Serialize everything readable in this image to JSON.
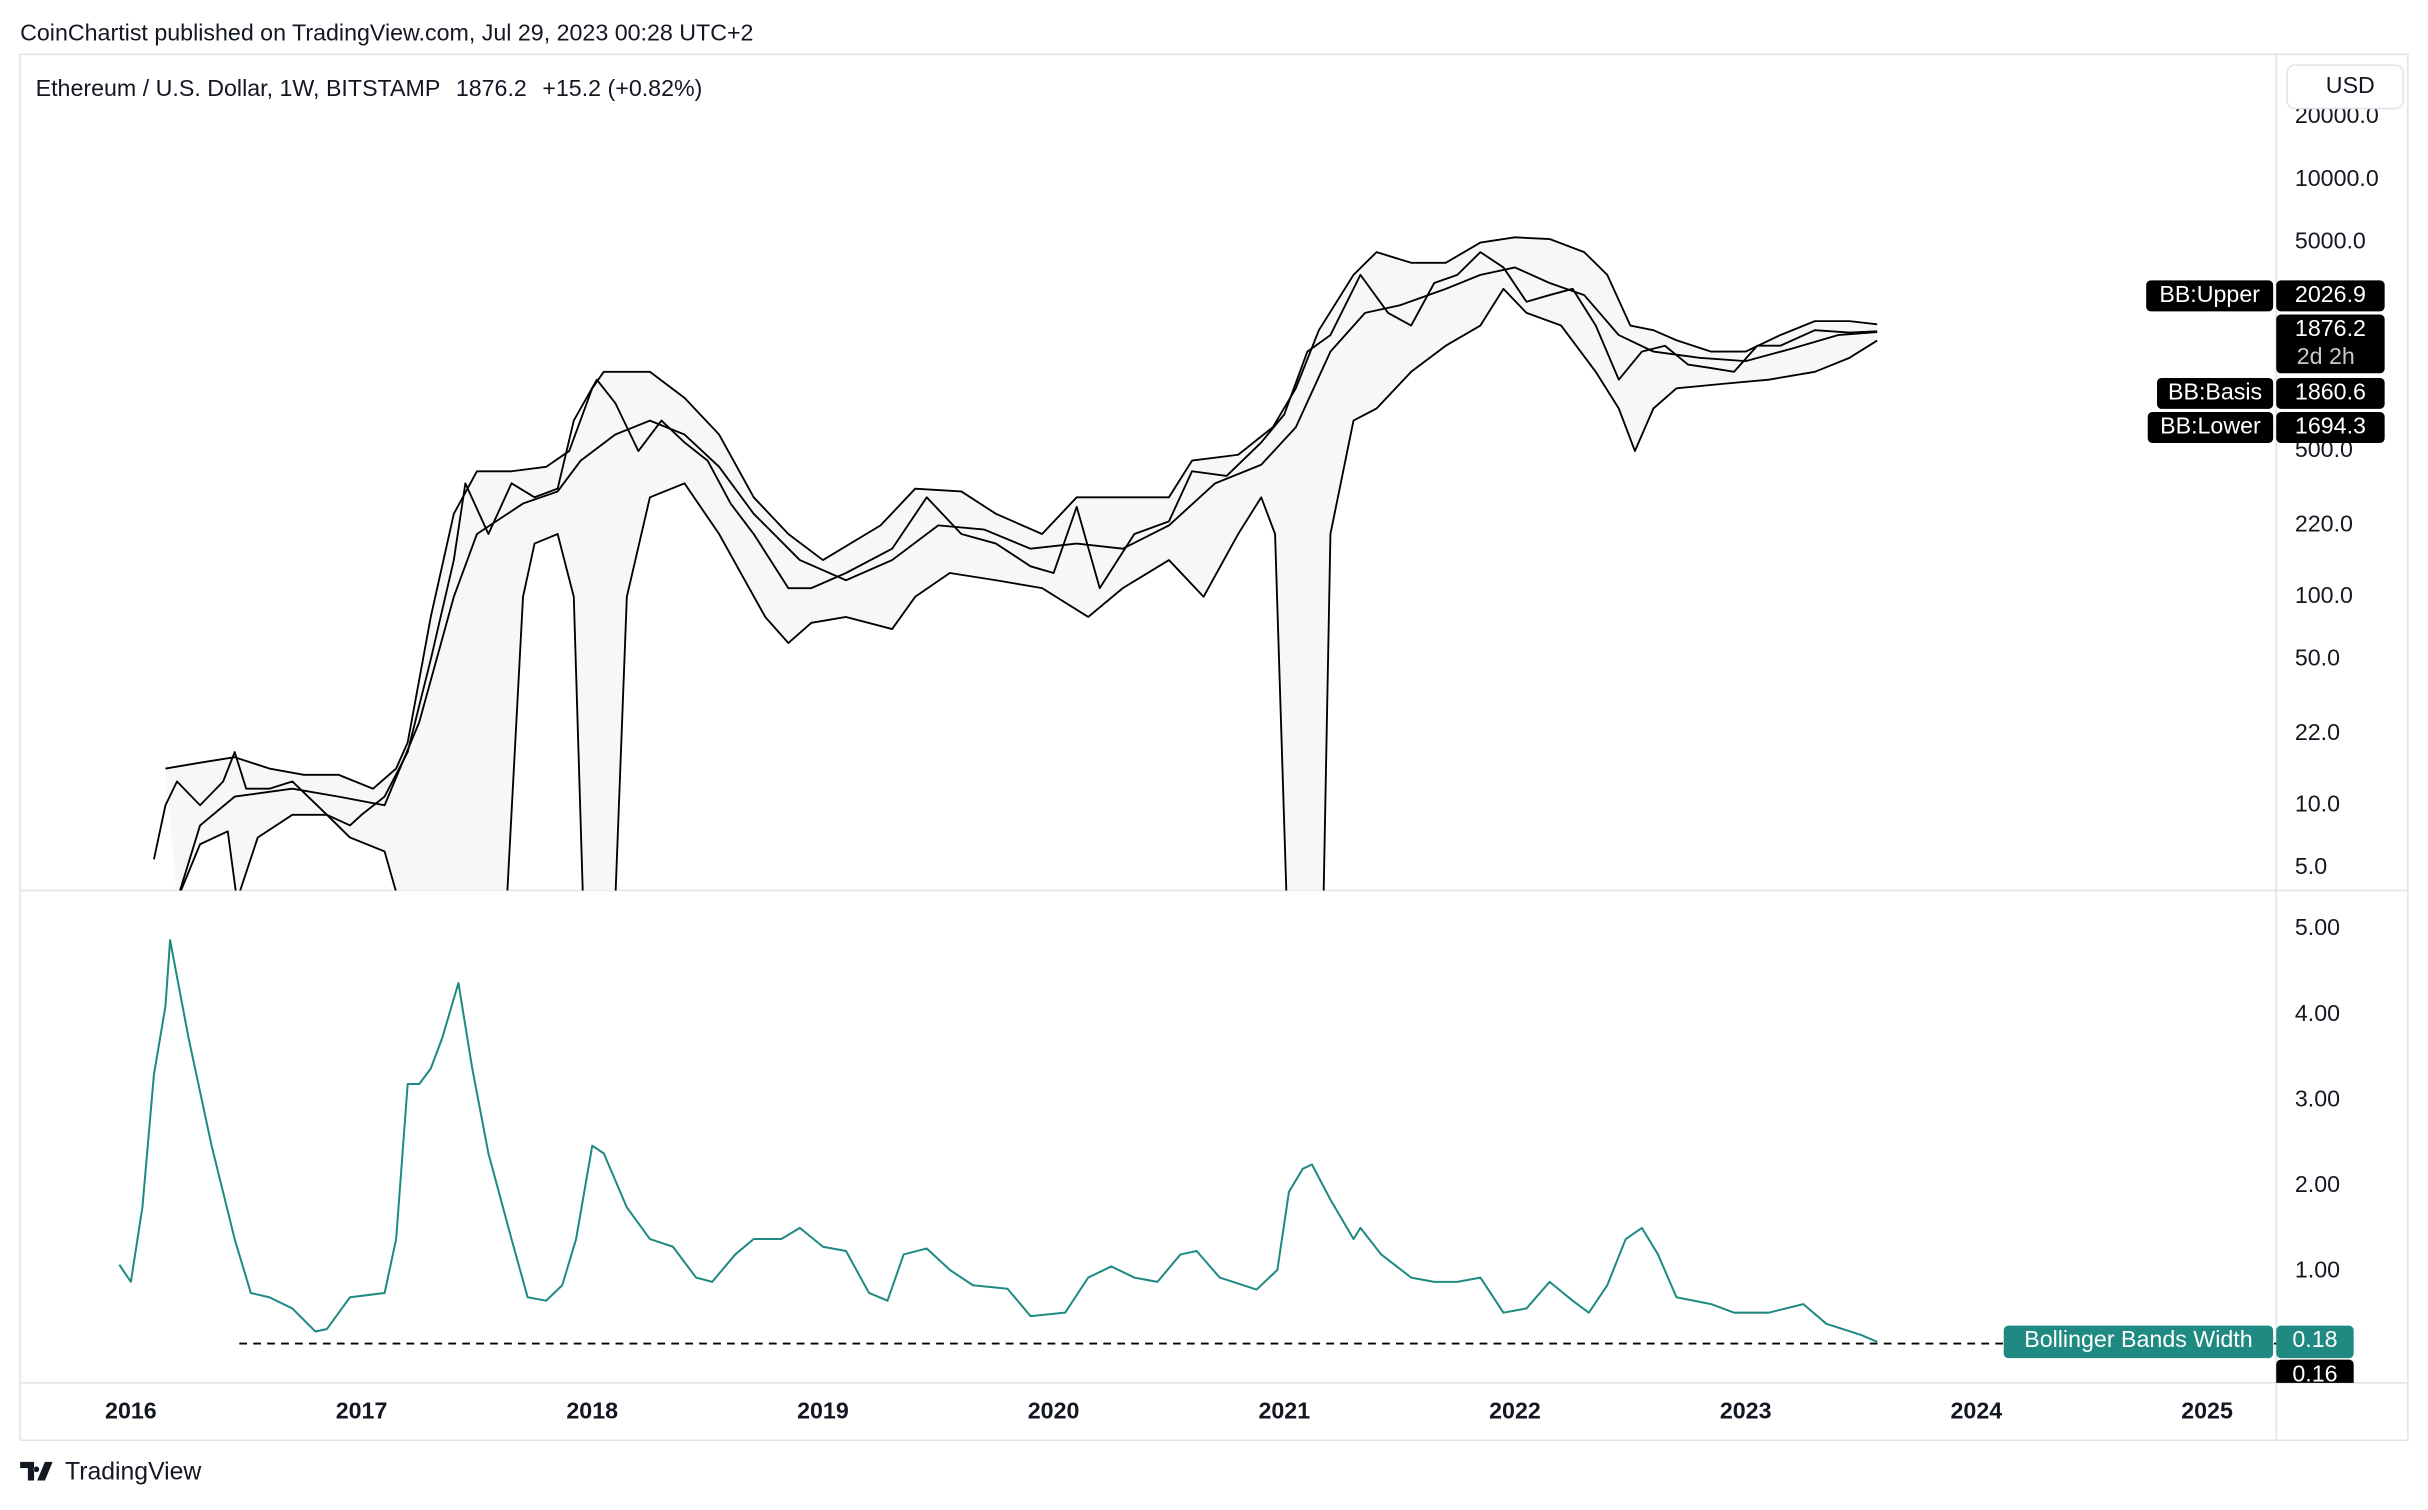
{
  "header": {
    "published": "CoinChartist published on TradingView.com, Jul 29, 2023 00:28 UTC+2",
    "currency": "USD"
  },
  "footer": {
    "brand": "TradingView"
  },
  "chart_data": [
    {
      "type": "line",
      "title": "Ethereum / U.S. Dollar, 1W, BITSTAMP",
      "change": "+15.2 (+0.82%)",
      "countdown": "2d 2h",
      "log_scale": true,
      "grid": false,
      "band_fill": "#f7f7f7",
      "xlim": [
        2015.52,
        2025.3
      ],
      "ylim": [
        3.9,
        40000
      ],
      "yticks": [
        {
          "value": 5,
          "label": "5.0"
        },
        {
          "value": 10,
          "label": "10.0"
        },
        {
          "value": 22,
          "label": "22.0"
        },
        {
          "value": 50,
          "label": "50.0"
        },
        {
          "value": 100,
          "label": "100.0"
        },
        {
          "value": 220,
          "label": "220.0"
        },
        {
          "value": 500,
          "label": "500.0"
        },
        {
          "value": 5000,
          "label": "5000.0"
        },
        {
          "value": 10000,
          "label": "10000.0"
        },
        {
          "value": 20000,
          "label": "20000.0"
        }
      ],
      "series": [
        {
          "color": "#000000",
          "x": [
            2016.1,
            2016.15,
            2016.2,
            2016.3,
            2016.4,
            2016.45,
            2016.5,
            2016.6,
            2016.7,
            2016.85,
            2016.95,
            2017.0,
            2017.1,
            2017.2,
            2017.3,
            2017.4,
            2017.45,
            2017.55,
            2017.65,
            2017.75,
            2017.85,
            2017.92,
            2018.02,
            2018.1,
            2018.2,
            2018.3,
            2018.4,
            2018.5,
            2018.6,
            2018.7,
            2018.85,
            2018.95,
            2019.1,
            2019.3,
            2019.45,
            2019.6,
            2019.75,
            2019.9,
            2020.0,
            2020.1,
            2020.2,
            2020.35,
            2020.5,
            2020.6,
            2020.75,
            2020.9,
            2021.0,
            2021.1,
            2021.2,
            2021.33,
            2021.45,
            2021.55,
            2021.65,
            2021.75,
            2021.85,
            2021.95,
            2022.05,
            2022.15,
            2022.25,
            2022.35,
            2022.45,
            2022.55,
            2022.65,
            2022.75,
            2022.85,
            2022.95,
            2023.05,
            2023.15,
            2023.3,
            2023.45,
            2023.57
          ],
          "values": [
            5.5,
            10,
            13,
            10,
            13,
            18,
            12,
            12,
            13,
            9,
            8,
            9,
            11,
            18,
            50,
            150,
            350,
            200,
            350,
            300,
            330,
            700,
            1100,
            850,
            500,
            700,
            550,
            450,
            280,
            200,
            110,
            110,
            130,
            170,
            300,
            200,
            180,
            140,
            130,
            270,
            110,
            200,
            230,
            400,
            380,
            550,
            750,
            1500,
            1800,
            3500,
            2300,
            2000,
            3200,
            3500,
            4500,
            3800,
            2600,
            2800,
            3000,
            2000,
            1100,
            1500,
            1600,
            1300,
            1250,
            1200,
            1600,
            1600,
            1900,
            1850,
            1876.2
          ]
        },
        {
          "name": "BB:Upper",
          "color": "#000000",
          "x": [
            2016.15,
            2016.3,
            2016.45,
            2016.6,
            2016.75,
            2016.9,
            2017.05,
            2017.15,
            2017.2,
            2017.3,
            2017.4,
            2017.5,
            2017.65,
            2017.8,
            2017.9,
            2018.0,
            2018.05,
            2018.25,
            2018.4,
            2018.55,
            2018.7,
            2018.85,
            2019.0,
            2019.25,
            2019.4,
            2019.6,
            2019.75,
            2019.95,
            2020.1,
            2020.3,
            2020.5,
            2020.6,
            2020.8,
            2020.95,
            2021.05,
            2021.15,
            2021.3,
            2021.4,
            2021.55,
            2021.7,
            2021.85,
            2022.0,
            2022.15,
            2022.3,
            2022.4,
            2022.5,
            2022.6,
            2022.7,
            2022.85,
            2023.0,
            2023.15,
            2023.3,
            2023.45,
            2023.57
          ],
          "values": [
            15,
            16,
            17,
            15,
            14,
            14,
            12,
            15,
            20,
            80,
            250,
            400,
            400,
            420,
            500,
            1000,
            1200,
            1200,
            900,
            600,
            300,
            200,
            150,
            220,
            330,
            320,
            250,
            200,
            300,
            300,
            300,
            450,
            480,
            650,
            1000,
            1900,
            3500,
            4500,
            4000,
            4000,
            5000,
            5300,
            5200,
            4500,
            3500,
            2000,
            1900,
            1700,
            1500,
            1500,
            1800,
            2100,
            2100,
            2026.9
          ]
        },
        {
          "name": "BB:Basis",
          "color": "#000000",
          "x": [
            2016.2,
            2016.3,
            2016.45,
            2016.7,
            2016.9,
            2017.1,
            2017.25,
            2017.4,
            2017.5,
            2017.7,
            2017.85,
            2017.95,
            2018.1,
            2018.25,
            2018.4,
            2018.55,
            2018.7,
            2018.9,
            2019.1,
            2019.3,
            2019.5,
            2019.7,
            2019.9,
            2020.1,
            2020.3,
            2020.5,
            2020.7,
            2020.9,
            2021.05,
            2021.2,
            2021.35,
            2021.5,
            2021.7,
            2021.85,
            2022.0,
            2022.15,
            2022.3,
            2022.45,
            2022.6,
            2022.8,
            2023.0,
            2023.2,
            2023.4,
            2023.57
          ],
          "values": [
            3.5,
            8,
            11,
            12,
            11,
            10,
            25,
            100,
            200,
            280,
            320,
            450,
            600,
            700,
            600,
            420,
            250,
            150,
            120,
            150,
            220,
            210,
            170,
            180,
            170,
            220,
            350,
            430,
            650,
            1500,
            2300,
            2500,
            3000,
            3500,
            3800,
            3200,
            2800,
            1800,
            1500,
            1400,
            1350,
            1550,
            1800,
            1860.6
          ]
        },
        {
          "name": "BB:Lower",
          "color": "#000000",
          "x": [
            2016.2,
            2016.3,
            2016.42,
            2016.46,
            2016.55,
            2016.7,
            2016.85,
            2016.95,
            2017.1,
            2017.16,
            2017.63,
            2017.7,
            2017.75,
            2017.85,
            2017.92,
            2017.96,
            2018.1,
            2018.15,
            2018.25,
            2018.4,
            2018.55,
            2018.75,
            2018.85,
            2018.95,
            2019.1,
            2019.3,
            2019.4,
            2019.55,
            2019.75,
            2019.95,
            2020.15,
            2020.3,
            2020.5,
            2020.65,
            2020.8,
            2020.9,
            2020.96,
            2021.01,
            2021.17,
            2021.2,
            2021.3,
            2021.4,
            2021.55,
            2021.7,
            2021.85,
            2021.95,
            2022.05,
            2022.2,
            2022.35,
            2022.45,
            2022.52,
            2022.6,
            2022.7,
            2022.9,
            2023.1,
            2023.3,
            2023.45,
            2023.57
          ],
          "values": [
            3.5,
            6.5,
            7.5,
            3.5,
            7,
            9,
            9,
            7,
            6,
            3.5,
            3.5,
            100,
            180,
            200,
            100,
            3.5,
            3.5,
            100,
            300,
            350,
            200,
            80,
            60,
            75,
            80,
            70,
            100,
            130,
            120,
            110,
            80,
            110,
            150,
            100,
            200,
            300,
            200,
            3.5,
            3.5,
            200,
            700,
            800,
            1200,
            1600,
            2000,
            3000,
            2300,
            2000,
            1200,
            800,
            500,
            800,
            1000,
            1050,
            1100,
            1200,
            1400,
            1694.3
          ]
        }
      ]
    },
    {
      "type": "line",
      "grid": false,
      "xlim": [
        2015.52,
        2025.3
      ],
      "xticks": [
        2016,
        2017,
        2018,
        2019,
        2020,
        2021,
        2022,
        2023,
        2024,
        2025
      ],
      "ylim": [
        -0.3,
        5.45
      ],
      "yticks": [
        {
          "value": 1,
          "label": "1.00"
        },
        {
          "value": 2,
          "label": "2.00"
        },
        {
          "value": 3,
          "label": "3.00"
        },
        {
          "value": 4,
          "label": "4.00"
        },
        {
          "value": 5,
          "label": "5.00"
        }
      ],
      "hline": {
        "value": 0.16,
        "x": [
          2016.47,
          2025.3
        ],
        "color": "#000000"
      },
      "series": [
        {
          "name": "Bollinger Bands Width",
          "color": "#1e8a82",
          "x": [
            2015.95,
            2016.0,
            2016.05,
            2016.1,
            2016.15,
            2016.17,
            2016.25,
            2016.35,
            2016.45,
            2016.52,
            2016.6,
            2016.7,
            2016.8,
            2016.85,
            2016.95,
            2017.1,
            2017.15,
            2017.2,
            2017.25,
            2017.3,
            2017.35,
            2017.42,
            2017.48,
            2017.55,
            2017.65,
            2017.72,
            2017.8,
            2017.87,
            2017.93,
            2018.0,
            2018.05,
            2018.15,
            2018.25,
            2018.35,
            2018.45,
            2018.52,
            2018.62,
            2018.7,
            2018.82,
            2018.9,
            2019.0,
            2019.1,
            2019.2,
            2019.28,
            2019.35,
            2019.45,
            2019.55,
            2019.65,
            2019.8,
            2019.9,
            2020.05,
            2020.15,
            2020.25,
            2020.35,
            2020.45,
            2020.55,
            2020.62,
            2020.72,
            2020.88,
            2020.97,
            2021.02,
            2021.08,
            2021.12,
            2021.2,
            2021.3,
            2021.33,
            2021.42,
            2021.55,
            2021.65,
            2021.75,
            2021.85,
            2021.95,
            2022.05,
            2022.15,
            2022.25,
            2022.32,
            2022.4,
            2022.48,
            2022.55,
            2022.62,
            2022.7,
            2022.85,
            2022.95,
            2023.1,
            2023.25,
            2023.35,
            2023.5,
            2023.57
          ],
          "values": [
            1.08,
            0.88,
            1.75,
            3.3,
            4.1,
            4.87,
            3.73,
            2.47,
            1.38,
            0.75,
            0.7,
            0.57,
            0.3,
            0.33,
            0.7,
            0.75,
            1.38,
            3.19,
            3.19,
            3.37,
            3.73,
            4.37,
            3.37,
            2.38,
            1.38,
            0.7,
            0.66,
            0.84,
            1.38,
            2.47,
            2.38,
            1.75,
            1.38,
            1.29,
            0.93,
            0.88,
            1.2,
            1.38,
            1.38,
            1.51,
            1.29,
            1.24,
            0.75,
            0.66,
            1.2,
            1.27,
            1.02,
            0.84,
            0.8,
            0.48,
            0.52,
            0.93,
            1.06,
            0.93,
            0.88,
            1.2,
            1.24,
            0.93,
            0.79,
            1.02,
            1.93,
            2.2,
            2.25,
            1.84,
            1.38,
            1.51,
            1.2,
            0.93,
            0.88,
            0.88,
            0.93,
            0.52,
            0.57,
            0.88,
            0.66,
            0.52,
            0.84,
            1.38,
            1.51,
            1.2,
            0.7,
            0.62,
            0.52,
            0.52,
            0.62,
            0.39,
            0.26,
            0.18
          ]
        }
      ]
    }
  ]
}
